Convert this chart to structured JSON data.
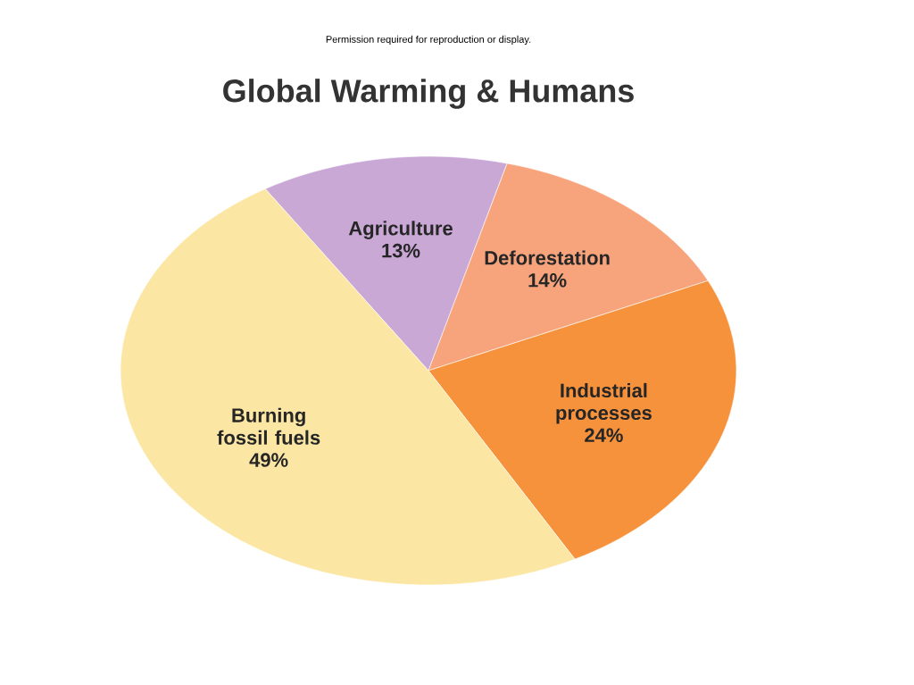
{
  "chart_data": {
    "type": "pie",
    "title": "Global Warming & Humans",
    "annotations": [
      "Permission required for reproduction or display."
    ],
    "categories": [
      "Agriculture",
      "Deforestation",
      "Industrial processes",
      "Burning fossil fuels"
    ],
    "values": [
      13,
      14,
      24,
      49
    ],
    "colors": [
      "#c9a8d6",
      "#f7a47c",
      "#f7923c",
      "#fbe7a3"
    ],
    "value_labels": [
      "13%",
      "14%",
      "24%",
      "49%"
    ]
  }
}
